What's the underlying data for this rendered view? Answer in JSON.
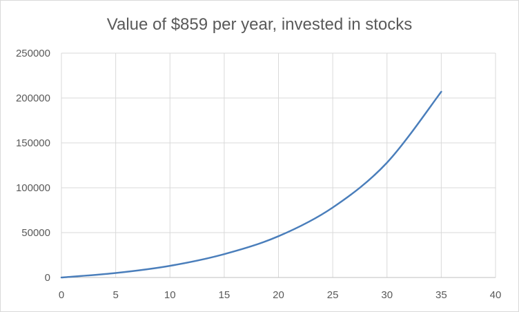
{
  "chart_data": {
    "type": "line",
    "title": "Value of $859 per year, invested in stocks",
    "xlabel": "",
    "ylabel": "",
    "xlim": [
      0,
      40
    ],
    "ylim": [
      0,
      250000
    ],
    "x_ticks": [
      "0",
      "5",
      "10",
      "15",
      "20",
      "25",
      "30",
      "35",
      "40"
    ],
    "y_ticks": [
      "0",
      "50000",
      "100000",
      "150000",
      "200000",
      "250000"
    ],
    "grid": true,
    "legend": "none",
    "series": [
      {
        "color": "#4a7ebb",
        "x": [
          0,
          5,
          10,
          15,
          20,
          25,
          30,
          35
        ],
        "y": [
          0,
          5000,
          13000,
          26000,
          46000,
          78000,
          128000,
          207000
        ]
      }
    ]
  }
}
